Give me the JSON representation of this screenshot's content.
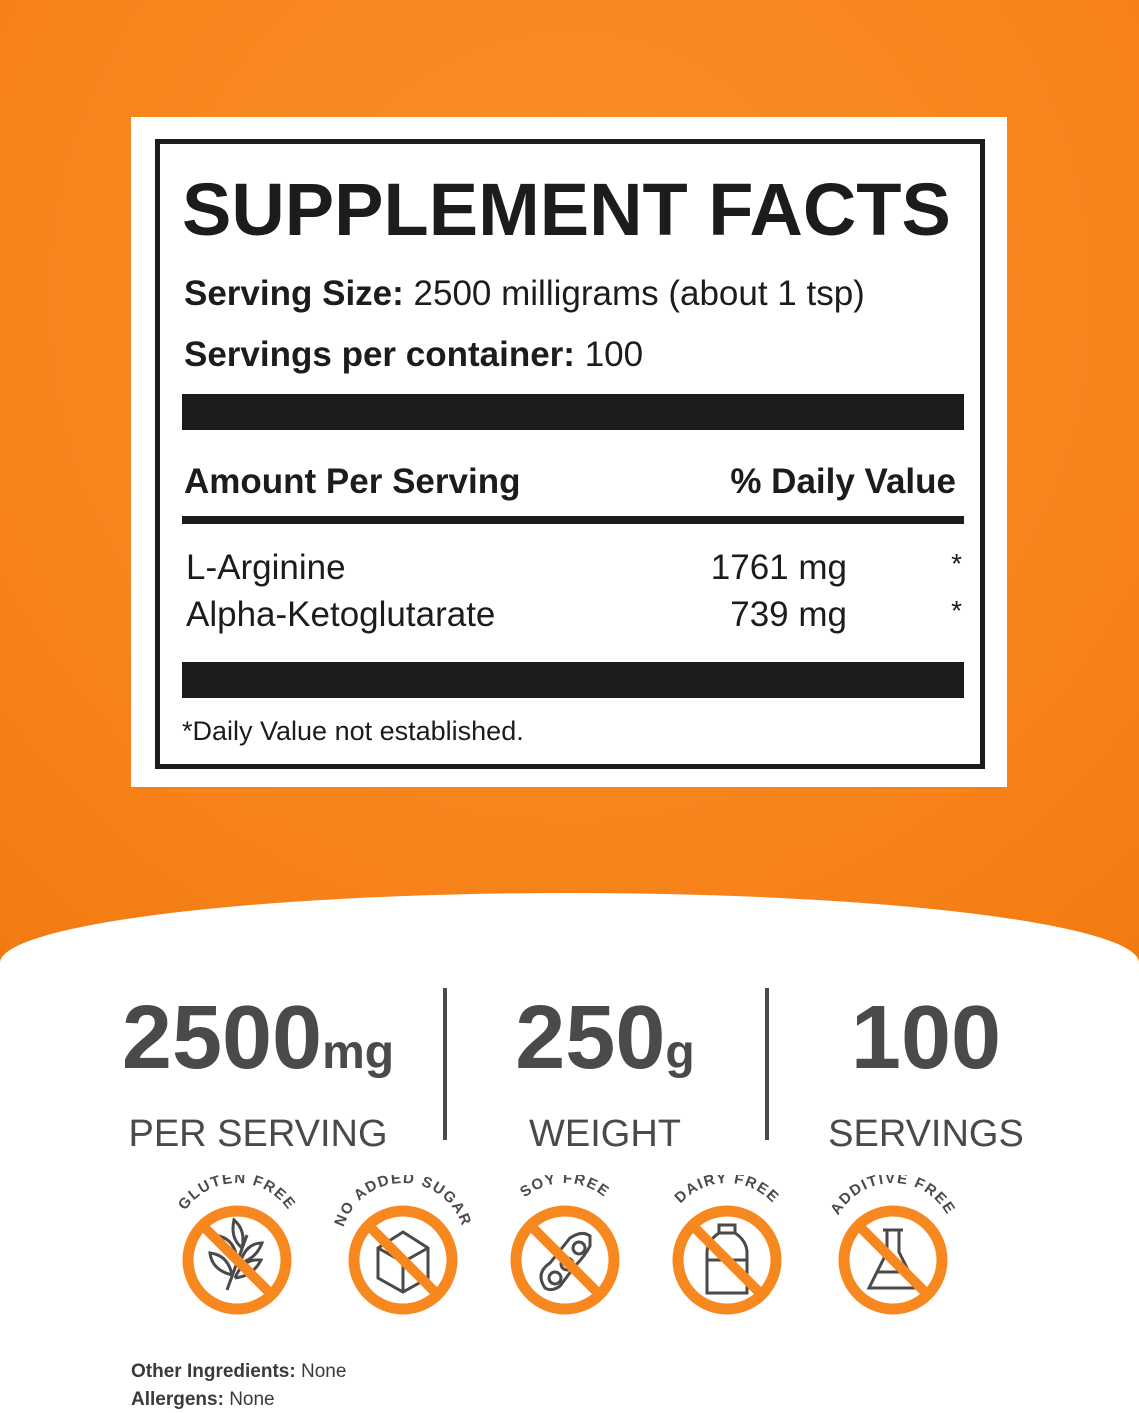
{
  "colors": {
    "accent": "#f7871f",
    "text": "#1c1c1c",
    "stat_text": "#4a4a4a"
  },
  "facts": {
    "title": "SUPPLEMENT FACTS",
    "serving_size_label": "Serving Size:",
    "serving_size_value": "2500 milligrams (about 1 tsp)",
    "servings_label": "Servings per container:",
    "servings_value": "100",
    "amount_header": "Amount Per Serving",
    "dv_header": "% Daily Value",
    "rows": [
      {
        "name": "L-Arginine",
        "amount": "1761 mg",
        "dv": "*"
      },
      {
        "name": "Alpha-Ketoglutarate",
        "amount": "739 mg",
        "dv": "*"
      }
    ],
    "footnote": "*Daily Value not established."
  },
  "stats": [
    {
      "value": "2500",
      "unit": "mg",
      "label": "PER SERVING"
    },
    {
      "value": "250",
      "unit": "g",
      "label": "WEIGHT"
    },
    {
      "value": "100",
      "unit": "",
      "label": "SERVINGS"
    }
  ],
  "badges": [
    {
      "label": "GLUTEN FREE",
      "icon": "wheat-icon"
    },
    {
      "label": "NO ADDED SUGAR",
      "icon": "sugar-cube-icon"
    },
    {
      "label": "SOY FREE",
      "icon": "soybean-icon"
    },
    {
      "label": "DAIRY FREE",
      "icon": "milk-bottle-icon"
    },
    {
      "label": "ADDITIVE FREE",
      "icon": "flask-icon"
    }
  ],
  "other_ingredients": {
    "label": "Other Ingredients:",
    "value": "None"
  },
  "allergens": {
    "label": "Allergens:",
    "value": "None"
  }
}
